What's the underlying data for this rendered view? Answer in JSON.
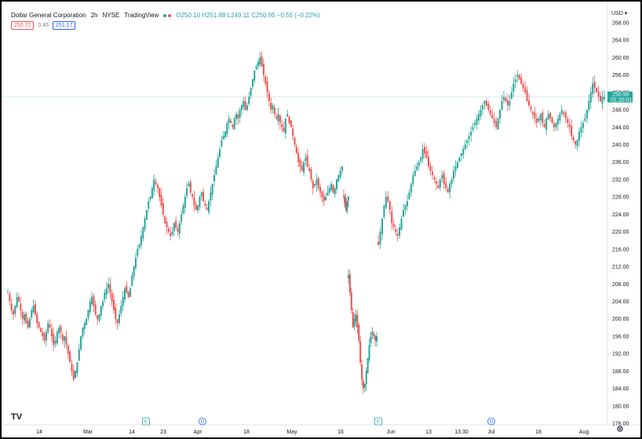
{
  "header": {
    "symbol": "Dollar General Corporation",
    "interval": "2h",
    "exchange": "NYSE",
    "source": "TradingView",
    "ohlc_label": "O250.10  H251.88  L249.11  C250.95  −0.55 (−0.22%)"
  },
  "price_boxes": {
    "sell": "250.72",
    "spread": "0.45",
    "buy": "251.17"
  },
  "currency": "USD",
  "last_price": {
    "price": "250.95",
    "countdown": "01:20:01"
  },
  "colors": {
    "up": "#26a69a",
    "down": "#ef5350",
    "accent": "#2962ff"
  },
  "chart_data": {
    "type": "candlestick",
    "y_range": [
      176,
      268
    ],
    "y_ticks": [
      "268.00",
      "264.00",
      "260.00",
      "256.00",
      "252.00",
      "248.00",
      "244.00",
      "240.00",
      "236.00",
      "232.00",
      "228.00",
      "224.00",
      "220.00",
      "216.00",
      "212.00",
      "208.00",
      "204.00",
      "200.00",
      "196.00",
      "192.00",
      "188.00",
      "184.00",
      "180.00",
      "176.00"
    ],
    "x_ticks": [
      "14",
      "Mar",
      "14",
      "23",
      "Apr",
      "18",
      "May",
      "16",
      "Jun",
      "13",
      "13:30",
      "Jul",
      "18",
      "Aug"
    ],
    "events": [
      {
        "label": "E",
        "kind": "earnings"
      },
      {
        "label": "D",
        "kind": "dividend"
      },
      {
        "label": "E",
        "kind": "earnings"
      },
      {
        "label": "D",
        "kind": "dividend"
      }
    ],
    "last_close": 250.95,
    "series": [
      {
        "name": "",
        "closes": [
          206,
          204,
          202,
          201,
          203,
          205,
          204,
          202,
          200,
          201,
          199,
          198,
          200,
          202,
          203,
          201,
          199,
          198,
          197,
          196,
          195,
          197,
          199,
          198,
          196,
          194,
          195,
          197,
          198,
          197,
          195,
          196,
          194,
          192,
          190,
          188,
          186,
          188,
          190,
          193,
          196,
          198,
          199,
          200,
          202,
          204,
          205,
          203,
          201,
          200,
          201,
          203,
          204,
          206,
          207,
          208,
          206,
          204,
          202,
          200,
          199,
          201,
          203,
          205,
          207,
          206,
          205,
          207,
          210,
          212,
          214,
          216,
          217,
          219,
          221,
          223,
          225,
          227,
          228,
          230,
          232,
          231,
          230,
          228,
          226,
          224,
          222,
          221,
          220,
          219,
          220,
          222,
          221,
          220,
          222,
          224,
          226,
          228,
          230,
          231,
          229,
          228,
          226,
          225,
          226,
          228,
          229,
          227,
          226,
          225,
          227,
          229,
          231,
          233,
          235,
          237,
          239,
          241,
          242,
          243,
          245,
          246,
          245,
          244,
          246,
          247,
          246,
          248,
          249,
          250,
          248,
          249,
          251,
          253,
          255,
          257,
          258,
          259,
          260,
          258,
          256,
          254,
          252,
          250,
          248,
          249,
          247,
          246,
          247,
          245,
          244,
          243,
          246,
          247,
          245,
          244,
          242,
          240,
          238,
          236,
          235,
          234,
          236,
          237,
          235,
          234,
          232,
          230,
          231,
          232,
          230,
          229,
          228,
          227,
          228,
          229,
          230,
          231,
          229,
          230,
          232,
          233,
          234,
          235
        ],
        "closes_2": [
          228,
          227,
          228,
          226,
          225,
          226,
          227,
          228
        ],
        "closes_3": [
          210,
          206,
          202,
          198,
          200,
          201,
          198,
          195,
          190,
          186,
          184,
          185,
          188,
          191,
          194,
          196,
          197,
          196,
          195,
          196
        ],
        "closes_4": [
          217,
          220,
          223,
          226,
          228,
          227,
          225,
          222,
          221,
          220,
          219,
          221,
          223,
          225,
          226,
          227,
          229,
          231,
          233,
          234,
          235,
          236,
          237,
          239,
          238,
          237,
          235,
          234,
          233,
          232,
          231,
          230,
          232,
          233,
          231,
          230,
          229,
          231,
          232,
          234,
          235,
          236,
          237,
          238,
          239,
          240,
          241,
          242,
          243,
          244,
          245,
          246,
          247,
          248,
          249,
          250,
          249,
          248,
          247,
          246,
          245,
          244,
          246,
          248,
          250,
          251,
          250,
          249,
          250,
          252,
          254,
          255,
          256,
          255,
          254,
          253,
          252,
          250,
          249,
          248,
          247,
          246,
          245,
          246,
          247,
          245,
          244,
          246,
          247,
          246,
          245,
          244,
          245,
          246,
          247,
          248,
          247,
          246,
          245,
          244,
          242,
          241,
          240,
          241,
          243,
          244,
          245,
          246,
          248,
          250,
          252,
          254,
          253,
          252,
          251,
          250,
          251,
          250.95
        ]
      }
    ]
  }
}
